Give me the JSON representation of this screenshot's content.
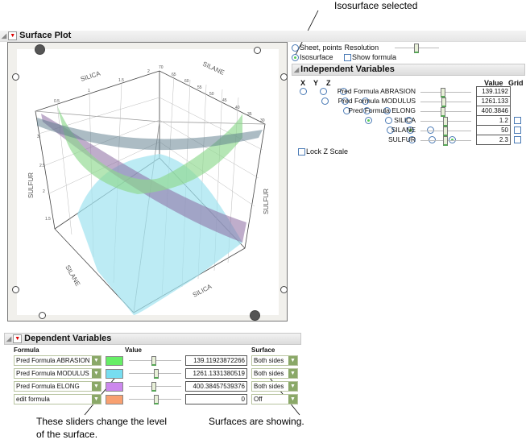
{
  "annotations": {
    "top": "Isosurface selected",
    "sliders": "These sliders change the level",
    "sliders2": "of the surface.",
    "surfaces": "Surfaces are showing."
  },
  "surface_plot": {
    "title": "Surface Plot",
    "axes": {
      "silica_label": "SILICA",
      "silane_label": "SILANE",
      "sulfur_label": "SULFUR",
      "silica_ticks": [
        "0.5",
        "1",
        "1.5",
        "2"
      ],
      "silane_ticks": [
        "30",
        "35",
        "40",
        "45",
        "50",
        "55",
        "60",
        "65",
        "70"
      ],
      "sulfur_ticks": [
        "1.5",
        "2",
        "2.5",
        "3"
      ]
    }
  },
  "options": {
    "sheet_label": "Sheet, points",
    "resolution_label": "Resolution",
    "isosurface_label": "Isosurface",
    "isosurface_selected": true,
    "show_formula_label": "Show formula",
    "resolution_level": 0.5
  },
  "independent": {
    "title": "Independent Variables",
    "col_x": "X",
    "col_y": "Y",
    "col_z": "Z",
    "col_value": "Value",
    "col_grid": "Grid",
    "rows": [
      {
        "name": "Pred Formula ABRASION",
        "value": "139.1192",
        "axis": "",
        "slider": 0.45,
        "grid": null
      },
      {
        "name": "Pred Formula MODULUS",
        "value": "1261.133",
        "axis": "",
        "slider": 0.47,
        "grid": null
      },
      {
        "name": "Pred Formula ELONG",
        "value": "400.3846",
        "axis": "",
        "slider": 0.45,
        "grid": null
      },
      {
        "name": "SILICA",
        "value": "1.2",
        "axis": "X",
        "slider": 0.5,
        "grid": false
      },
      {
        "name": "SILANE",
        "value": "50",
        "axis": "Y",
        "slider": 0.5,
        "grid": false
      },
      {
        "name": "SULFUR",
        "value": "2.3",
        "axis": "Z",
        "slider": 0.5,
        "grid": false
      }
    ],
    "lock_z_label": "Lock Z Scale"
  },
  "dependent": {
    "title": "Dependent Variables",
    "col_formula": "Formula",
    "col_value": "Value",
    "col_surface": "Surface",
    "rows": [
      {
        "formula": "Pred Formula ABRASION",
        "color": "#66ee66",
        "value": "139.11923872266",
        "surface": "Both sides",
        "slider": 0.45
      },
      {
        "formula": "Pred Formula MODULUS",
        "color": "#77ddf0",
        "value": "1261.1331380519",
        "surface": "Both sides",
        "slider": 0.5
      },
      {
        "formula": "Pred Formula ELONG",
        "color": "#cc88ee",
        "value": "400.38457539376",
        "surface": "Both sides",
        "slider": 0.45
      },
      {
        "formula": "edit formula",
        "color": "#f8a070",
        "value": "0",
        "surface": "Off",
        "slider": 0.5
      }
    ]
  }
}
